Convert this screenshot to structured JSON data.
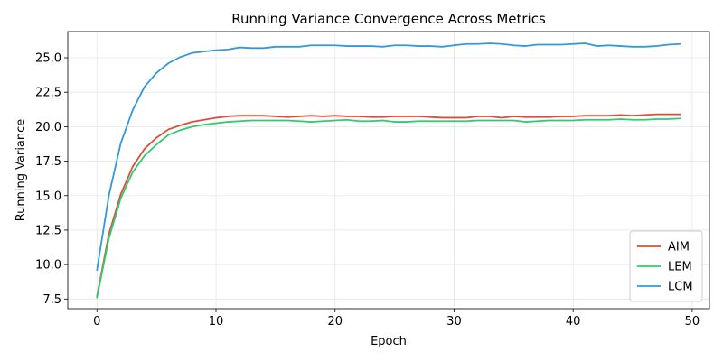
{
  "chart_data": {
    "type": "line",
    "title": "Running Variance Convergence Across Metrics",
    "xlabel": "Epoch",
    "ylabel": "Running Variance",
    "xlim": [
      -2.45,
      51.45
    ],
    "ylim": [
      6.8,
      26.9
    ],
    "xticks": [
      0,
      10,
      20,
      30,
      40,
      50
    ],
    "xtick_labels": [
      "0",
      "10",
      "20",
      "30",
      "40",
      "50"
    ],
    "yticks": [
      7.5,
      10.0,
      12.5,
      15.0,
      17.5,
      20.0,
      22.5,
      25.0
    ],
    "ytick_labels": [
      "7.5",
      "10.0",
      "12.5",
      "15.0",
      "17.5",
      "20.0",
      "22.5",
      "25.0"
    ],
    "grid": true,
    "legend_position": "bottom-right",
    "x": [
      0,
      1,
      2,
      3,
      4,
      5,
      6,
      7,
      8,
      9,
      10,
      11,
      12,
      13,
      14,
      15,
      16,
      17,
      18,
      19,
      20,
      21,
      22,
      23,
      24,
      25,
      26,
      27,
      28,
      29,
      30,
      31,
      32,
      33,
      34,
      35,
      36,
      37,
      38,
      39,
      40,
      41,
      42,
      43,
      44,
      45,
      46,
      47,
      48,
      49
    ],
    "series": [
      {
        "name": "AIM",
        "color": "#e04b3a",
        "values": [
          7.7,
          12.2,
          15.1,
          17.1,
          18.4,
          19.2,
          19.8,
          20.1,
          20.35,
          20.5,
          20.65,
          20.75,
          20.8,
          20.8,
          20.8,
          20.75,
          20.7,
          20.75,
          20.8,
          20.75,
          20.8,
          20.75,
          20.75,
          20.7,
          20.7,
          20.75,
          20.75,
          20.75,
          20.7,
          20.65,
          20.65,
          20.65,
          20.75,
          20.75,
          20.65,
          20.75,
          20.7,
          20.7,
          20.7,
          20.75,
          20.75,
          20.8,
          20.8,
          20.8,
          20.85,
          20.8,
          20.85,
          20.9,
          20.9,
          20.9
        ]
      },
      {
        "name": "LEM",
        "color": "#2ecc71",
        "values": [
          7.6,
          11.9,
          14.8,
          16.7,
          17.9,
          18.7,
          19.4,
          19.75,
          20.0,
          20.15,
          20.25,
          20.35,
          20.4,
          20.45,
          20.45,
          20.45,
          20.45,
          20.4,
          20.35,
          20.4,
          20.45,
          20.5,
          20.4,
          20.4,
          20.45,
          20.35,
          20.35,
          20.4,
          20.4,
          20.4,
          20.4,
          20.4,
          20.45,
          20.45,
          20.45,
          20.45,
          20.35,
          20.4,
          20.45,
          20.45,
          20.45,
          20.5,
          20.5,
          20.5,
          20.55,
          20.5,
          20.5,
          20.55,
          20.55,
          20.6
        ]
      },
      {
        "name": "LCM",
        "color": "#3498db",
        "values": [
          9.6,
          15.0,
          18.8,
          21.2,
          22.9,
          23.9,
          24.6,
          25.05,
          25.35,
          25.45,
          25.55,
          25.6,
          25.75,
          25.7,
          25.7,
          25.8,
          25.8,
          25.8,
          25.9,
          25.9,
          25.9,
          25.85,
          25.85,
          25.85,
          25.8,
          25.9,
          25.9,
          25.85,
          25.85,
          25.8,
          25.9,
          26.0,
          26.0,
          26.05,
          26.0,
          25.9,
          25.85,
          25.95,
          25.95,
          25.95,
          26.0,
          26.05,
          25.85,
          25.9,
          25.85,
          25.8,
          25.8,
          25.85,
          25.95,
          26.0
        ]
      }
    ]
  }
}
